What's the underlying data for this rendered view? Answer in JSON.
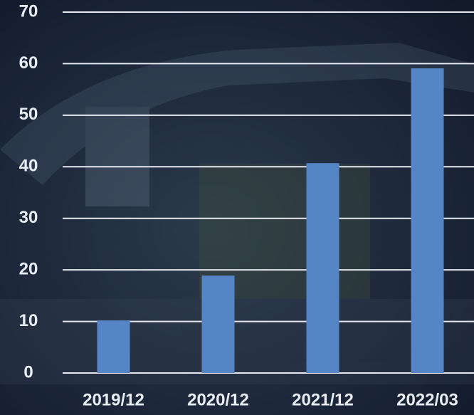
{
  "chart_data": {
    "type": "bar",
    "categories": [
      "2019/12",
      "2020/12",
      "2021/12",
      "2022/03"
    ],
    "values": [
      10.2,
      18.9,
      40.7,
      59.1
    ],
    "color": "#5585c4",
    "ylim": [
      0,
      70
    ],
    "yticks": [
      0,
      10,
      20,
      30,
      40,
      50,
      60,
      70
    ],
    "grid": true
  }
}
